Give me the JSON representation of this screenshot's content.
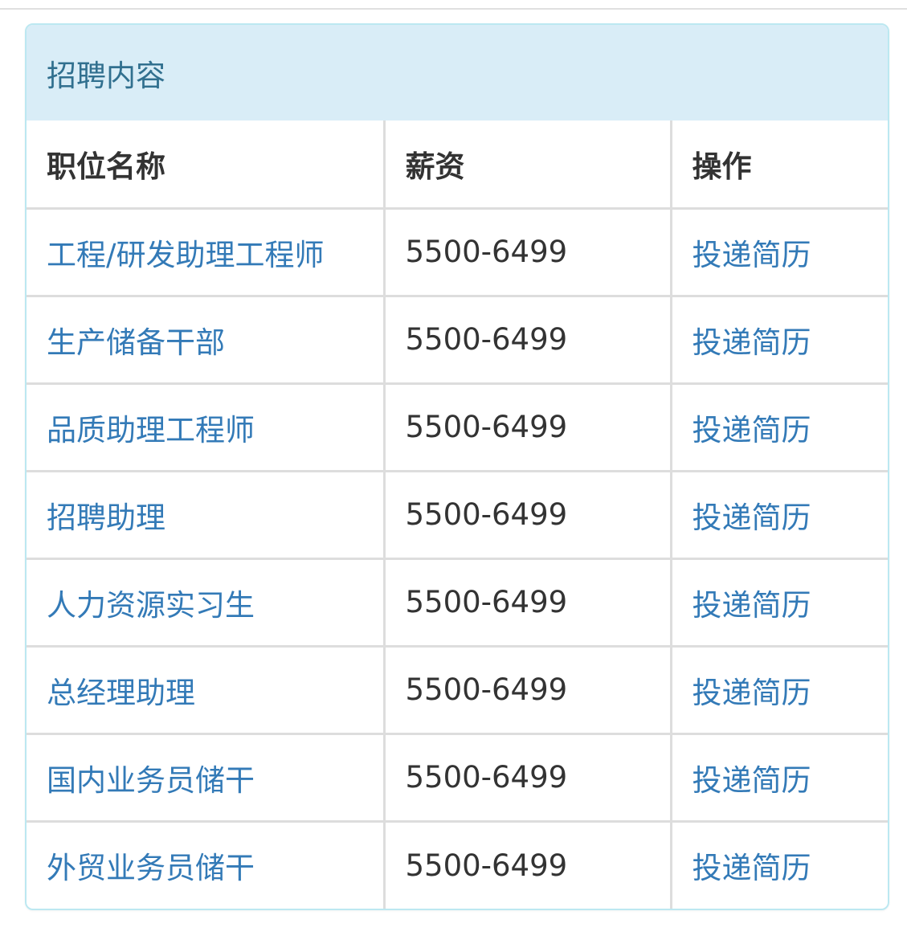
{
  "panel": {
    "title": "招聘内容"
  },
  "table": {
    "headers": [
      "职位名称",
      "薪资",
      "操作"
    ],
    "rows": [
      {
        "title": "工程/研发助理工程师",
        "salary": "5500-6499",
        "action": "投递简历"
      },
      {
        "title": "生产储备干部",
        "salary": "5500-6499",
        "action": "投递简历"
      },
      {
        "title": "品质助理工程师",
        "salary": "5500-6499",
        "action": "投递简历"
      },
      {
        "title": "招聘助理",
        "salary": "5500-6499",
        "action": "投递简历"
      },
      {
        "title": "人力资源实习生",
        "salary": "5500-6499",
        "action": "投递简历"
      },
      {
        "title": "总经理助理",
        "salary": "5500-6499",
        "action": "投递简历"
      },
      {
        "title": "国内业务员储干",
        "salary": "5500-6499",
        "action": "投递简历"
      },
      {
        "title": "外贸业务员储干",
        "salary": "5500-6499",
        "action": "投递简历"
      }
    ]
  },
  "colors": {
    "heading_bg": "#d9edf7",
    "heading_text": "#31708f",
    "border": "#bce8f1",
    "link": "#337ab7"
  }
}
